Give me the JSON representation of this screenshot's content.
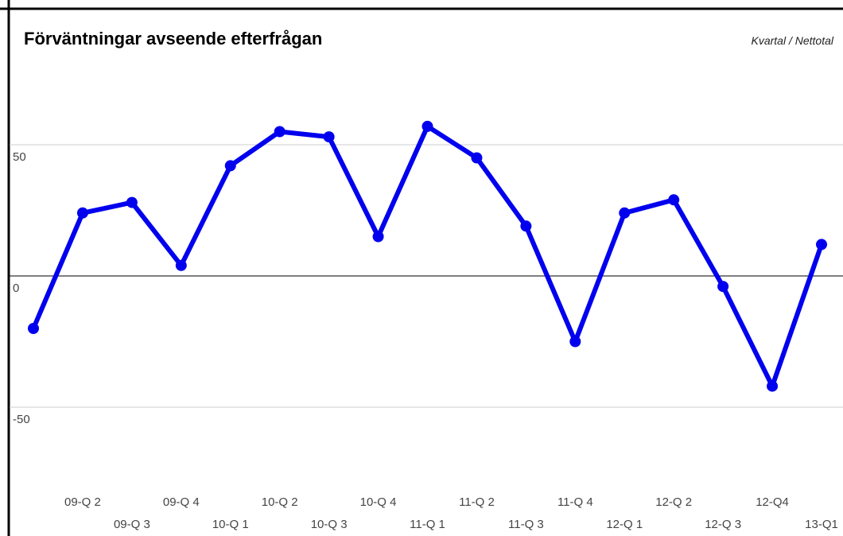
{
  "chart_data": {
    "type": "line",
    "title": "Förväntningar avseende efterfrågan",
    "subtitle": "Kvartal / Nettotal",
    "categories": [
      null,
      "09-Q 2",
      "09-Q 3",
      "09-Q 4",
      "10-Q 1",
      "10-Q 2",
      "10-Q 3",
      "10-Q 4",
      "11-Q 1",
      "11-Q 2",
      "11-Q 3",
      "11-Q 4",
      "12-Q 1",
      "12-Q 2",
      "12-Q 3",
      "12-Q4",
      "13-Q1"
    ],
    "series": [
      {
        "name": "Nettotal",
        "color": "#0000ee",
        "values": [
          -20,
          24,
          28,
          4,
          42,
          55,
          53,
          15,
          57,
          45,
          19,
          -25,
          24,
          29,
          -4,
          -42,
          12
        ]
      }
    ],
    "ylim": [
      -80,
      80
    ],
    "yticks": [
      -50,
      0,
      50
    ],
    "grid": true
  }
}
